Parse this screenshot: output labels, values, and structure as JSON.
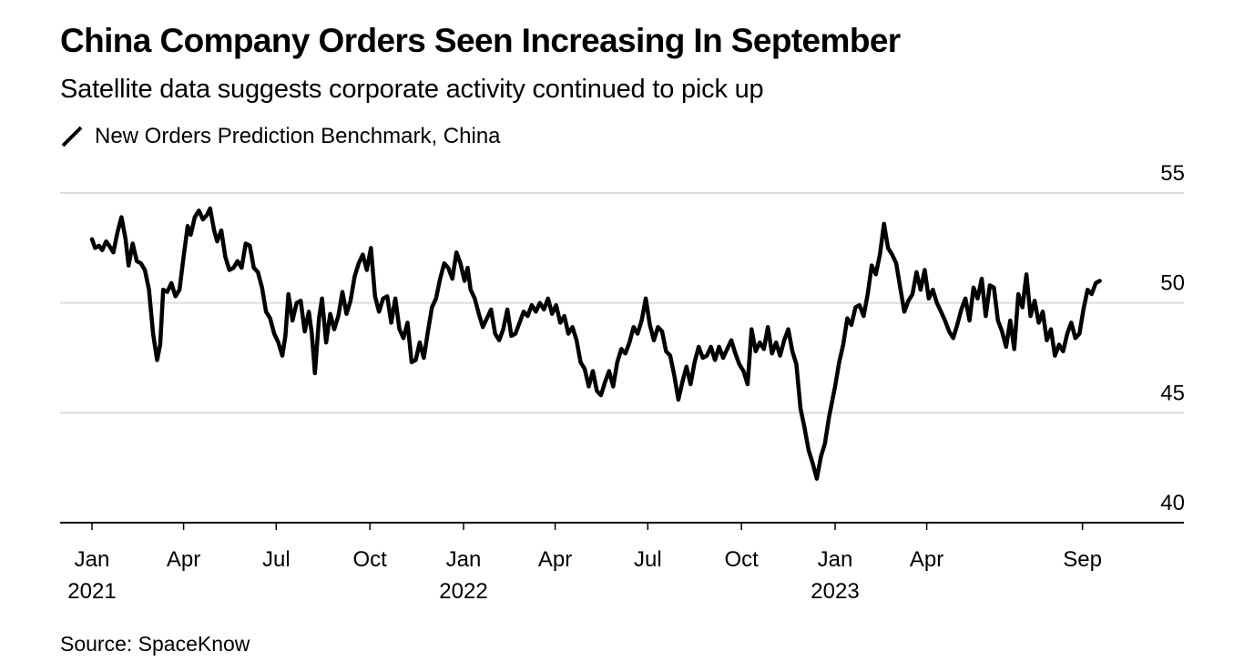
{
  "header": {
    "title": "China Company Orders Seen Increasing In September",
    "subtitle": "Satellite data suggests corporate activity continued to pick up",
    "legend_label": "New Orders Prediction Benchmark, China"
  },
  "footer": {
    "source": "Source: SpaceKnow"
  },
  "colors": {
    "line": "#000000",
    "grid": "#dddddd",
    "axis": "#000000"
  },
  "chart_data": {
    "type": "line",
    "title": "China Company Orders Seen Increasing In September",
    "subtitle": "Satellite data suggests corporate activity continued to pick up",
    "xlabel": "",
    "ylabel": "",
    "ylim": [
      40,
      55
    ],
    "xlim": [
      "2020-12-01",
      "2023-12-01"
    ],
    "y_ticks": [
      {
        "value": 55,
        "label": "55"
      },
      {
        "value": 50,
        "label": "50"
      },
      {
        "value": 45,
        "label": "45"
      },
      {
        "value": 40,
        "label": "40"
      }
    ],
    "x_ticks": [
      {
        "date": "2021-01-01",
        "label": "Jan",
        "year": "2021"
      },
      {
        "date": "2021-04-01",
        "label": "Apr",
        "year": ""
      },
      {
        "date": "2021-07-01",
        "label": "Jul",
        "year": ""
      },
      {
        "date": "2021-10-01",
        "label": "Oct",
        "year": ""
      },
      {
        "date": "2022-01-01",
        "label": "Jan",
        "year": "2022"
      },
      {
        "date": "2022-04-01",
        "label": "Apr",
        "year": ""
      },
      {
        "date": "2022-07-01",
        "label": "Jul",
        "year": ""
      },
      {
        "date": "2022-10-01",
        "label": "Oct",
        "year": ""
      },
      {
        "date": "2023-01-01",
        "label": "Jan",
        "year": "2023"
      },
      {
        "date": "2023-04-01",
        "label": "Apr",
        "year": ""
      },
      {
        "date": "2023-09-01",
        "label": "Sep",
        "year": ""
      }
    ],
    "grid": true,
    "y_axis_side": "right",
    "legend": "top-left",
    "series": [
      {
        "name": "New Orders Prediction Benchmark, China",
        "points": [
          [
            "2021-01-01",
            52.9
          ],
          [
            "2021-01-04",
            52.5
          ],
          [
            "2021-01-08",
            52.6
          ],
          [
            "2021-01-11",
            52.4
          ],
          [
            "2021-01-15",
            52.8
          ],
          [
            "2021-01-18",
            52.6
          ],
          [
            "2021-01-22",
            52.3
          ],
          [
            "2021-01-26",
            53.2
          ],
          [
            "2021-01-30",
            53.9
          ],
          [
            "2021-02-03",
            52.9
          ],
          [
            "2021-02-06",
            51.7
          ],
          [
            "2021-02-10",
            52.7
          ],
          [
            "2021-02-14",
            51.9
          ],
          [
            "2021-02-18",
            51.8
          ],
          [
            "2021-02-22",
            51.5
          ],
          [
            "2021-02-26",
            50.6
          ],
          [
            "2021-03-02",
            48.6
          ],
          [
            "2021-03-06",
            47.4
          ],
          [
            "2021-03-09",
            48.1
          ],
          [
            "2021-03-12",
            50.6
          ],
          [
            "2021-03-16",
            50.5
          ],
          [
            "2021-03-20",
            50.9
          ],
          [
            "2021-03-24",
            50.3
          ],
          [
            "2021-03-28",
            50.6
          ],
          [
            "2021-04-01",
            52.1
          ],
          [
            "2021-04-05",
            53.5
          ],
          [
            "2021-04-08",
            53.1
          ],
          [
            "2021-04-12",
            53.9
          ],
          [
            "2021-04-16",
            54.2
          ],
          [
            "2021-04-20",
            53.8
          ],
          [
            "2021-04-24",
            54.0
          ],
          [
            "2021-04-27",
            54.3
          ],
          [
            "2021-05-01",
            53.3
          ],
          [
            "2021-05-04",
            52.8
          ],
          [
            "2021-05-08",
            53.3
          ],
          [
            "2021-05-12",
            52.1
          ],
          [
            "2021-05-16",
            51.5
          ],
          [
            "2021-05-20",
            51.6
          ],
          [
            "2021-05-24",
            51.9
          ],
          [
            "2021-05-28",
            51.6
          ],
          [
            "2021-06-01",
            52.7
          ],
          [
            "2021-06-05",
            52.6
          ],
          [
            "2021-06-09",
            51.6
          ],
          [
            "2021-06-13",
            51.4
          ],
          [
            "2021-06-17",
            50.7
          ],
          [
            "2021-06-21",
            49.6
          ],
          [
            "2021-06-25",
            49.3
          ],
          [
            "2021-06-29",
            48.6
          ],
          [
            "2021-07-03",
            48.2
          ],
          [
            "2021-07-07",
            47.6
          ],
          [
            "2021-07-10",
            48.5
          ],
          [
            "2021-07-13",
            50.4
          ],
          [
            "2021-07-17",
            49.2
          ],
          [
            "2021-07-21",
            50.0
          ],
          [
            "2021-07-25",
            50.1
          ],
          [
            "2021-07-29",
            48.7
          ],
          [
            "2021-08-02",
            49.6
          ],
          [
            "2021-08-05",
            48.6
          ],
          [
            "2021-08-08",
            46.8
          ],
          [
            "2021-08-12",
            49.3
          ],
          [
            "2021-08-15",
            50.2
          ],
          [
            "2021-08-19",
            48.2
          ],
          [
            "2021-08-23",
            49.5
          ],
          [
            "2021-08-27",
            48.8
          ],
          [
            "2021-08-31",
            49.4
          ],
          [
            "2021-09-04",
            50.5
          ],
          [
            "2021-09-08",
            49.5
          ],
          [
            "2021-09-12",
            50.1
          ],
          [
            "2021-09-16",
            51.2
          ],
          [
            "2021-09-20",
            51.8
          ],
          [
            "2021-09-24",
            52.2
          ],
          [
            "2021-09-28",
            51.5
          ],
          [
            "2021-10-02",
            52.5
          ],
          [
            "2021-10-06",
            50.3
          ],
          [
            "2021-10-10",
            49.6
          ],
          [
            "2021-10-14",
            50.2
          ],
          [
            "2021-10-18",
            50.3
          ],
          [
            "2021-10-22",
            49.1
          ],
          [
            "2021-10-26",
            50.2
          ],
          [
            "2021-10-30",
            48.8
          ],
          [
            "2021-11-03",
            48.4
          ],
          [
            "2021-11-07",
            49.1
          ],
          [
            "2021-11-11",
            47.3
          ],
          [
            "2021-11-15",
            47.4
          ],
          [
            "2021-11-19",
            48.2
          ],
          [
            "2021-11-23",
            47.5
          ],
          [
            "2021-11-27",
            48.7
          ],
          [
            "2021-12-01",
            49.8
          ],
          [
            "2021-12-05",
            50.2
          ],
          [
            "2021-12-09",
            51.1
          ],
          [
            "2021-12-13",
            51.8
          ],
          [
            "2021-12-17",
            51.6
          ],
          [
            "2021-12-21",
            51.1
          ],
          [
            "2021-12-25",
            52.3
          ],
          [
            "2021-12-29",
            51.8
          ],
          [
            "2022-01-02",
            51.0
          ],
          [
            "2022-01-05",
            51.6
          ],
          [
            "2022-01-08",
            50.6
          ],
          [
            "2022-01-12",
            50.2
          ],
          [
            "2022-01-16",
            49.5
          ],
          [
            "2022-01-20",
            48.9
          ],
          [
            "2022-01-24",
            49.3
          ],
          [
            "2022-01-28",
            49.7
          ],
          [
            "2022-02-01",
            48.6
          ],
          [
            "2022-02-05",
            48.3
          ],
          [
            "2022-02-09",
            48.8
          ],
          [
            "2022-02-13",
            49.7
          ],
          [
            "2022-02-17",
            48.5
          ],
          [
            "2022-02-21",
            48.6
          ],
          [
            "2022-02-25",
            49.1
          ],
          [
            "2022-03-01",
            49.6
          ],
          [
            "2022-03-05",
            49.4
          ],
          [
            "2022-03-09",
            49.9
          ],
          [
            "2022-03-13",
            49.6
          ],
          [
            "2022-03-17",
            50.0
          ],
          [
            "2022-03-21",
            49.7
          ],
          [
            "2022-03-25",
            50.2
          ],
          [
            "2022-03-29",
            49.5
          ],
          [
            "2022-04-02",
            49.9
          ],
          [
            "2022-04-06",
            49.1
          ],
          [
            "2022-04-10",
            49.4
          ],
          [
            "2022-04-14",
            48.6
          ],
          [
            "2022-04-18",
            48.9
          ],
          [
            "2022-04-22",
            48.3
          ],
          [
            "2022-04-26",
            47.3
          ],
          [
            "2022-04-30",
            47.0
          ],
          [
            "2022-05-04",
            46.2
          ],
          [
            "2022-05-08",
            46.9
          ],
          [
            "2022-05-12",
            46.0
          ],
          [
            "2022-05-16",
            45.8
          ],
          [
            "2022-05-20",
            46.4
          ],
          [
            "2022-05-24",
            46.9
          ],
          [
            "2022-05-28",
            46.2
          ],
          [
            "2022-06-01",
            47.3
          ],
          [
            "2022-06-05",
            47.9
          ],
          [
            "2022-06-09",
            47.7
          ],
          [
            "2022-06-13",
            48.2
          ],
          [
            "2022-06-17",
            48.9
          ],
          [
            "2022-06-21",
            48.6
          ],
          [
            "2022-06-25",
            49.2
          ],
          [
            "2022-06-29",
            50.2
          ],
          [
            "2022-07-03",
            49.0
          ],
          [
            "2022-07-07",
            48.3
          ],
          [
            "2022-07-11",
            48.9
          ],
          [
            "2022-07-15",
            48.7
          ],
          [
            "2022-07-19",
            47.8
          ],
          [
            "2022-07-23",
            47.6
          ],
          [
            "2022-07-27",
            46.7
          ],
          [
            "2022-07-31",
            45.6
          ],
          [
            "2022-08-04",
            46.4
          ],
          [
            "2022-08-08",
            47.1
          ],
          [
            "2022-08-12",
            46.3
          ],
          [
            "2022-08-16",
            47.3
          ],
          [
            "2022-08-20",
            48.0
          ],
          [
            "2022-08-24",
            47.5
          ],
          [
            "2022-08-28",
            47.6
          ],
          [
            "2022-09-01",
            48.0
          ],
          [
            "2022-09-05",
            47.4
          ],
          [
            "2022-09-09",
            48.0
          ],
          [
            "2022-09-13",
            47.5
          ],
          [
            "2022-09-17",
            47.9
          ],
          [
            "2022-09-21",
            48.3
          ],
          [
            "2022-09-25",
            47.7
          ],
          [
            "2022-09-29",
            47.2
          ],
          [
            "2022-10-03",
            46.9
          ],
          [
            "2022-10-07",
            46.3
          ],
          [
            "2022-10-11",
            48.8
          ],
          [
            "2022-10-15",
            47.8
          ],
          [
            "2022-10-19",
            48.2
          ],
          [
            "2022-10-23",
            47.9
          ],
          [
            "2022-10-27",
            48.9
          ],
          [
            "2022-10-31",
            47.7
          ],
          [
            "2022-11-04",
            48.2
          ],
          [
            "2022-11-08",
            47.6
          ],
          [
            "2022-11-12",
            48.3
          ],
          [
            "2022-11-16",
            48.8
          ],
          [
            "2022-11-20",
            47.8
          ],
          [
            "2022-11-24",
            47.2
          ],
          [
            "2022-11-28",
            45.2
          ],
          [
            "2022-12-02",
            44.3
          ],
          [
            "2022-12-06",
            43.3
          ],
          [
            "2022-12-10",
            42.7
          ],
          [
            "2022-12-14",
            42.0
          ],
          [
            "2022-12-18",
            43.0
          ],
          [
            "2022-12-22",
            43.6
          ],
          [
            "2022-12-26",
            44.8
          ],
          [
            "2023-01-01",
            46.2
          ],
          [
            "2023-01-05",
            47.3
          ],
          [
            "2023-01-09",
            48.1
          ],
          [
            "2023-01-13",
            49.3
          ],
          [
            "2023-01-17",
            49.0
          ],
          [
            "2023-01-21",
            49.8
          ],
          [
            "2023-01-25",
            49.9
          ],
          [
            "2023-01-29",
            49.4
          ],
          [
            "2023-02-02",
            50.4
          ],
          [
            "2023-02-06",
            51.7
          ],
          [
            "2023-02-10",
            51.3
          ],
          [
            "2023-02-14",
            52.2
          ],
          [
            "2023-02-18",
            53.6
          ],
          [
            "2023-02-22",
            52.5
          ],
          [
            "2023-02-26",
            52.2
          ],
          [
            "2023-03-02",
            51.8
          ],
          [
            "2023-03-06",
            50.7
          ],
          [
            "2023-03-10",
            49.6
          ],
          [
            "2023-03-14",
            50.1
          ],
          [
            "2023-03-18",
            50.4
          ],
          [
            "2023-03-22",
            51.4
          ],
          [
            "2023-03-26",
            50.6
          ],
          [
            "2023-03-30",
            51.5
          ],
          [
            "2023-04-03",
            50.2
          ],
          [
            "2023-04-07",
            50.6
          ],
          [
            "2023-04-11",
            50.0
          ],
          [
            "2023-04-15",
            49.6
          ],
          [
            "2023-04-19",
            49.2
          ],
          [
            "2023-04-23",
            48.7
          ],
          [
            "2023-04-27",
            48.4
          ],
          [
            "2023-05-01",
            49.0
          ],
          [
            "2023-05-05",
            49.7
          ],
          [
            "2023-05-09",
            50.2
          ],
          [
            "2023-05-13",
            49.2
          ],
          [
            "2023-05-17",
            50.7
          ],
          [
            "2023-05-21",
            50.2
          ],
          [
            "2023-05-25",
            51.1
          ],
          [
            "2023-05-29",
            49.4
          ],
          [
            "2023-06-02",
            50.8
          ],
          [
            "2023-06-06",
            50.7
          ],
          [
            "2023-06-10",
            49.2
          ],
          [
            "2023-06-14",
            48.7
          ],
          [
            "2023-06-18",
            48.0
          ],
          [
            "2023-06-22",
            49.2
          ],
          [
            "2023-06-26",
            47.9
          ],
          [
            "2023-06-30",
            50.4
          ],
          [
            "2023-07-04",
            49.8
          ],
          [
            "2023-07-08",
            51.3
          ],
          [
            "2023-07-12",
            49.4
          ],
          [
            "2023-07-16",
            50.1
          ],
          [
            "2023-07-20",
            49.1
          ],
          [
            "2023-07-24",
            49.6
          ],
          [
            "2023-07-28",
            48.3
          ],
          [
            "2023-08-01",
            48.8
          ],
          [
            "2023-08-05",
            47.6
          ],
          [
            "2023-08-09",
            48.1
          ],
          [
            "2023-08-13",
            47.8
          ],
          [
            "2023-08-17",
            48.6
          ],
          [
            "2023-08-21",
            49.1
          ],
          [
            "2023-08-25",
            48.4
          ],
          [
            "2023-08-29",
            48.6
          ],
          [
            "2023-09-02",
            49.7
          ],
          [
            "2023-09-06",
            50.6
          ],
          [
            "2023-09-10",
            50.4
          ],
          [
            "2023-09-14",
            50.9
          ],
          [
            "2023-09-18",
            51.0
          ]
        ]
      }
    ]
  }
}
